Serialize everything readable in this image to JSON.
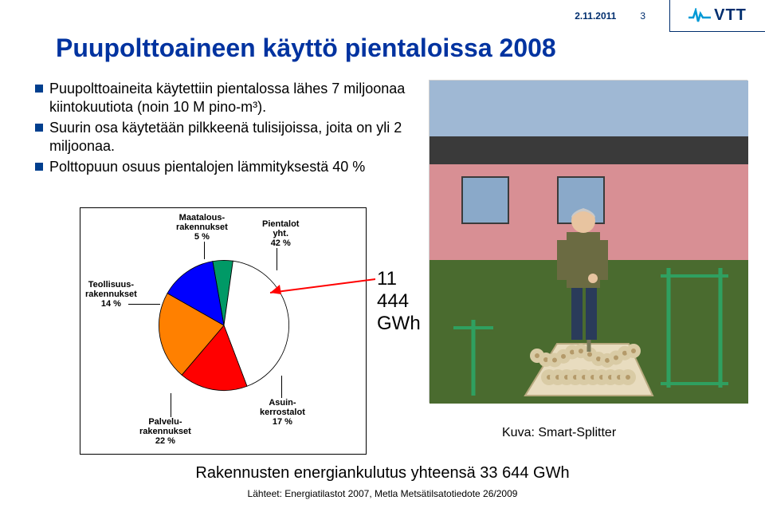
{
  "header": {
    "date": "2.11.2011",
    "page": "3",
    "logo_text": "VTT",
    "logo_mark_color": "#0099d6",
    "logo_text_color": "#002e6e"
  },
  "title": "Puupolttoaineen käyttö pientaloissa 2008",
  "bullets": [
    "Puupolttoaineita käytettiin pientalossa lähes 7 miljoonaa kiintokuutiota (noin 10 M pino-m³).",
    "Suurin osa käytetään pilkkeenä tulisijoissa, joita on yli 2 miljoonaa.",
    "Polttopuun osuus pientalojen lämmityksestä 40 %"
  ],
  "chart": {
    "type": "pie",
    "background_color": "#ffffff",
    "border_color": "#000000",
    "slices": [
      {
        "label1": "Maatalous-",
        "label2": "rakennukset",
        "pct": "5 %",
        "value": 5,
        "color": "#009966"
      },
      {
        "label1": "Pientalot",
        "label2": "yht.",
        "pct": "42 %",
        "value": 42,
        "color": "#ffffff",
        "stroke": "#000000"
      },
      {
        "label1": "Asuin-",
        "label2": "kerrostalot",
        "pct": "17 %",
        "value": 17,
        "color": "#ff0000"
      },
      {
        "label1": "Palvelu-",
        "label2": "rakennukset",
        "pct": "22 %",
        "value": 22,
        "color": "#ff8000"
      },
      {
        "label1": "Teollisuus-",
        "label2": "rakennukset",
        "pct": "14 %",
        "value": 14,
        "color": "#0000ff"
      }
    ],
    "annotation": "11 444 GWh",
    "annotation_arrow_color": "#ff0000"
  },
  "photo_caption": "Kuva: Smart-Splitter",
  "footer": {
    "main": "Rakennusten energiankulutus yhteensä 33 644 GWh",
    "source": "Lähteet: Energiatilastot 2007, Metla Metsätilsatotiedote 26/2009"
  },
  "photo": {
    "sky_color": "#9fb8d4",
    "wall_color": "#d88f94",
    "roof_color": "#3a3a3a",
    "grass_color": "#4a6b2f",
    "wood_color": "#e8dcbf",
    "rack_color": "#2fa060",
    "shirt_color": "#6b6b42",
    "pants_color": "#2a3b5a"
  }
}
